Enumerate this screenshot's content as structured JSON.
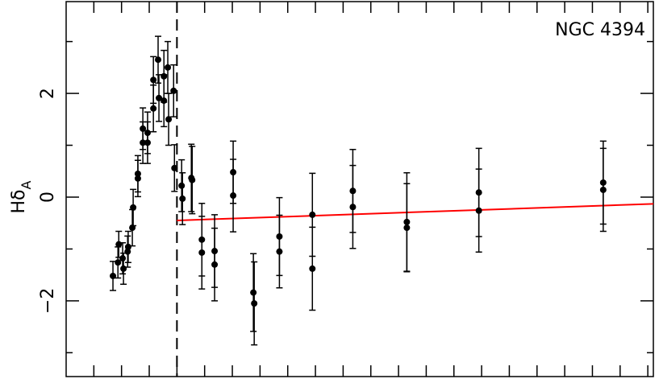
{
  "chart_data": {
    "type": "scatter",
    "annotation": "NGC 4394",
    "ylabel": {
      "text": "Hδ",
      "subscript": "A"
    },
    "xlim": [
      -1,
      20.2
    ],
    "xticks": [
      0,
      1,
      2,
      3,
      4,
      5,
      6,
      7,
      8,
      9,
      10,
      11,
      12,
      13,
      14,
      15,
      16,
      17,
      18,
      19,
      20
    ],
    "ylim": [
      -3.46,
      3.77
    ],
    "yticks": [
      {
        "value": -2,
        "label": "−2"
      },
      {
        "value": 0,
        "label": "0"
      },
      {
        "value": 2,
        "label": "2"
      }
    ],
    "yminor": [
      -3,
      -1,
      1,
      3
    ],
    "vline": 3,
    "fit_line": {
      "color": "#ff0000",
      "x": [
        3,
        20.2
      ],
      "y": [
        -0.45,
        -0.13
      ]
    },
    "series": [
      {
        "color": "#000000",
        "x": [
          0.69,
          0.87,
          0.9,
          1.04,
          1.07,
          1.22,
          1.24,
          1.39,
          1.42,
          1.59,
          1.59,
          1.77,
          1.77,
          1.94,
          1.94,
          2.15,
          2.15,
          2.32,
          2.35,
          2.53,
          2.53,
          2.67,
          2.7,
          2.88,
          2.91,
          3.17,
          3.2,
          3.52,
          3.55,
          3.9,
          3.9,
          4.36,
          4.36,
          5.03,
          5.03,
          5.76,
          5.79,
          6.7,
          6.7,
          7.89,
          7.89,
          9.35,
          9.35,
          11.3,
          11.3,
          13.9,
          13.9,
          18.39,
          18.39
        ],
        "values": [
          -1.52,
          -1.26,
          -0.91,
          -1.18,
          -1.38,
          -1.05,
          -0.96,
          -0.59,
          -0.2,
          0.36,
          0.45,
          1.05,
          1.32,
          1.05,
          1.24,
          1.71,
          2.26,
          2.65,
          1.91,
          1.86,
          2.33,
          2.5,
          1.5,
          2.05,
          0.56,
          0.22,
          -0.03,
          0.37,
          0.33,
          -0.82,
          -1.07,
          -1.04,
          -1.3,
          0.48,
          0.03,
          -1.84,
          -2.05,
          -0.76,
          -1.05,
          -0.34,
          -1.38,
          0.12,
          -0.19,
          -0.48,
          -0.59,
          0.09,
          -0.26,
          0.28,
          0.14
        ],
        "errors": [
          0.28,
          0.3,
          0.25,
          0.3,
          0.3,
          0.3,
          0.3,
          0.35,
          0.35,
          0.35,
          0.35,
          0.4,
          0.4,
          0.4,
          0.4,
          0.45,
          0.45,
          0.45,
          0.45,
          0.5,
          0.5,
          0.5,
          0.5,
          0.5,
          0.45,
          0.5,
          0.5,
          0.65,
          0.65,
          0.7,
          0.7,
          0.7,
          0.7,
          0.6,
          0.7,
          0.75,
          0.8,
          0.75,
          0.7,
          0.8,
          0.8,
          0.8,
          0.8,
          0.95,
          0.85,
          0.85,
          0.8,
          0.8,
          0.8
        ]
      }
    ]
  }
}
